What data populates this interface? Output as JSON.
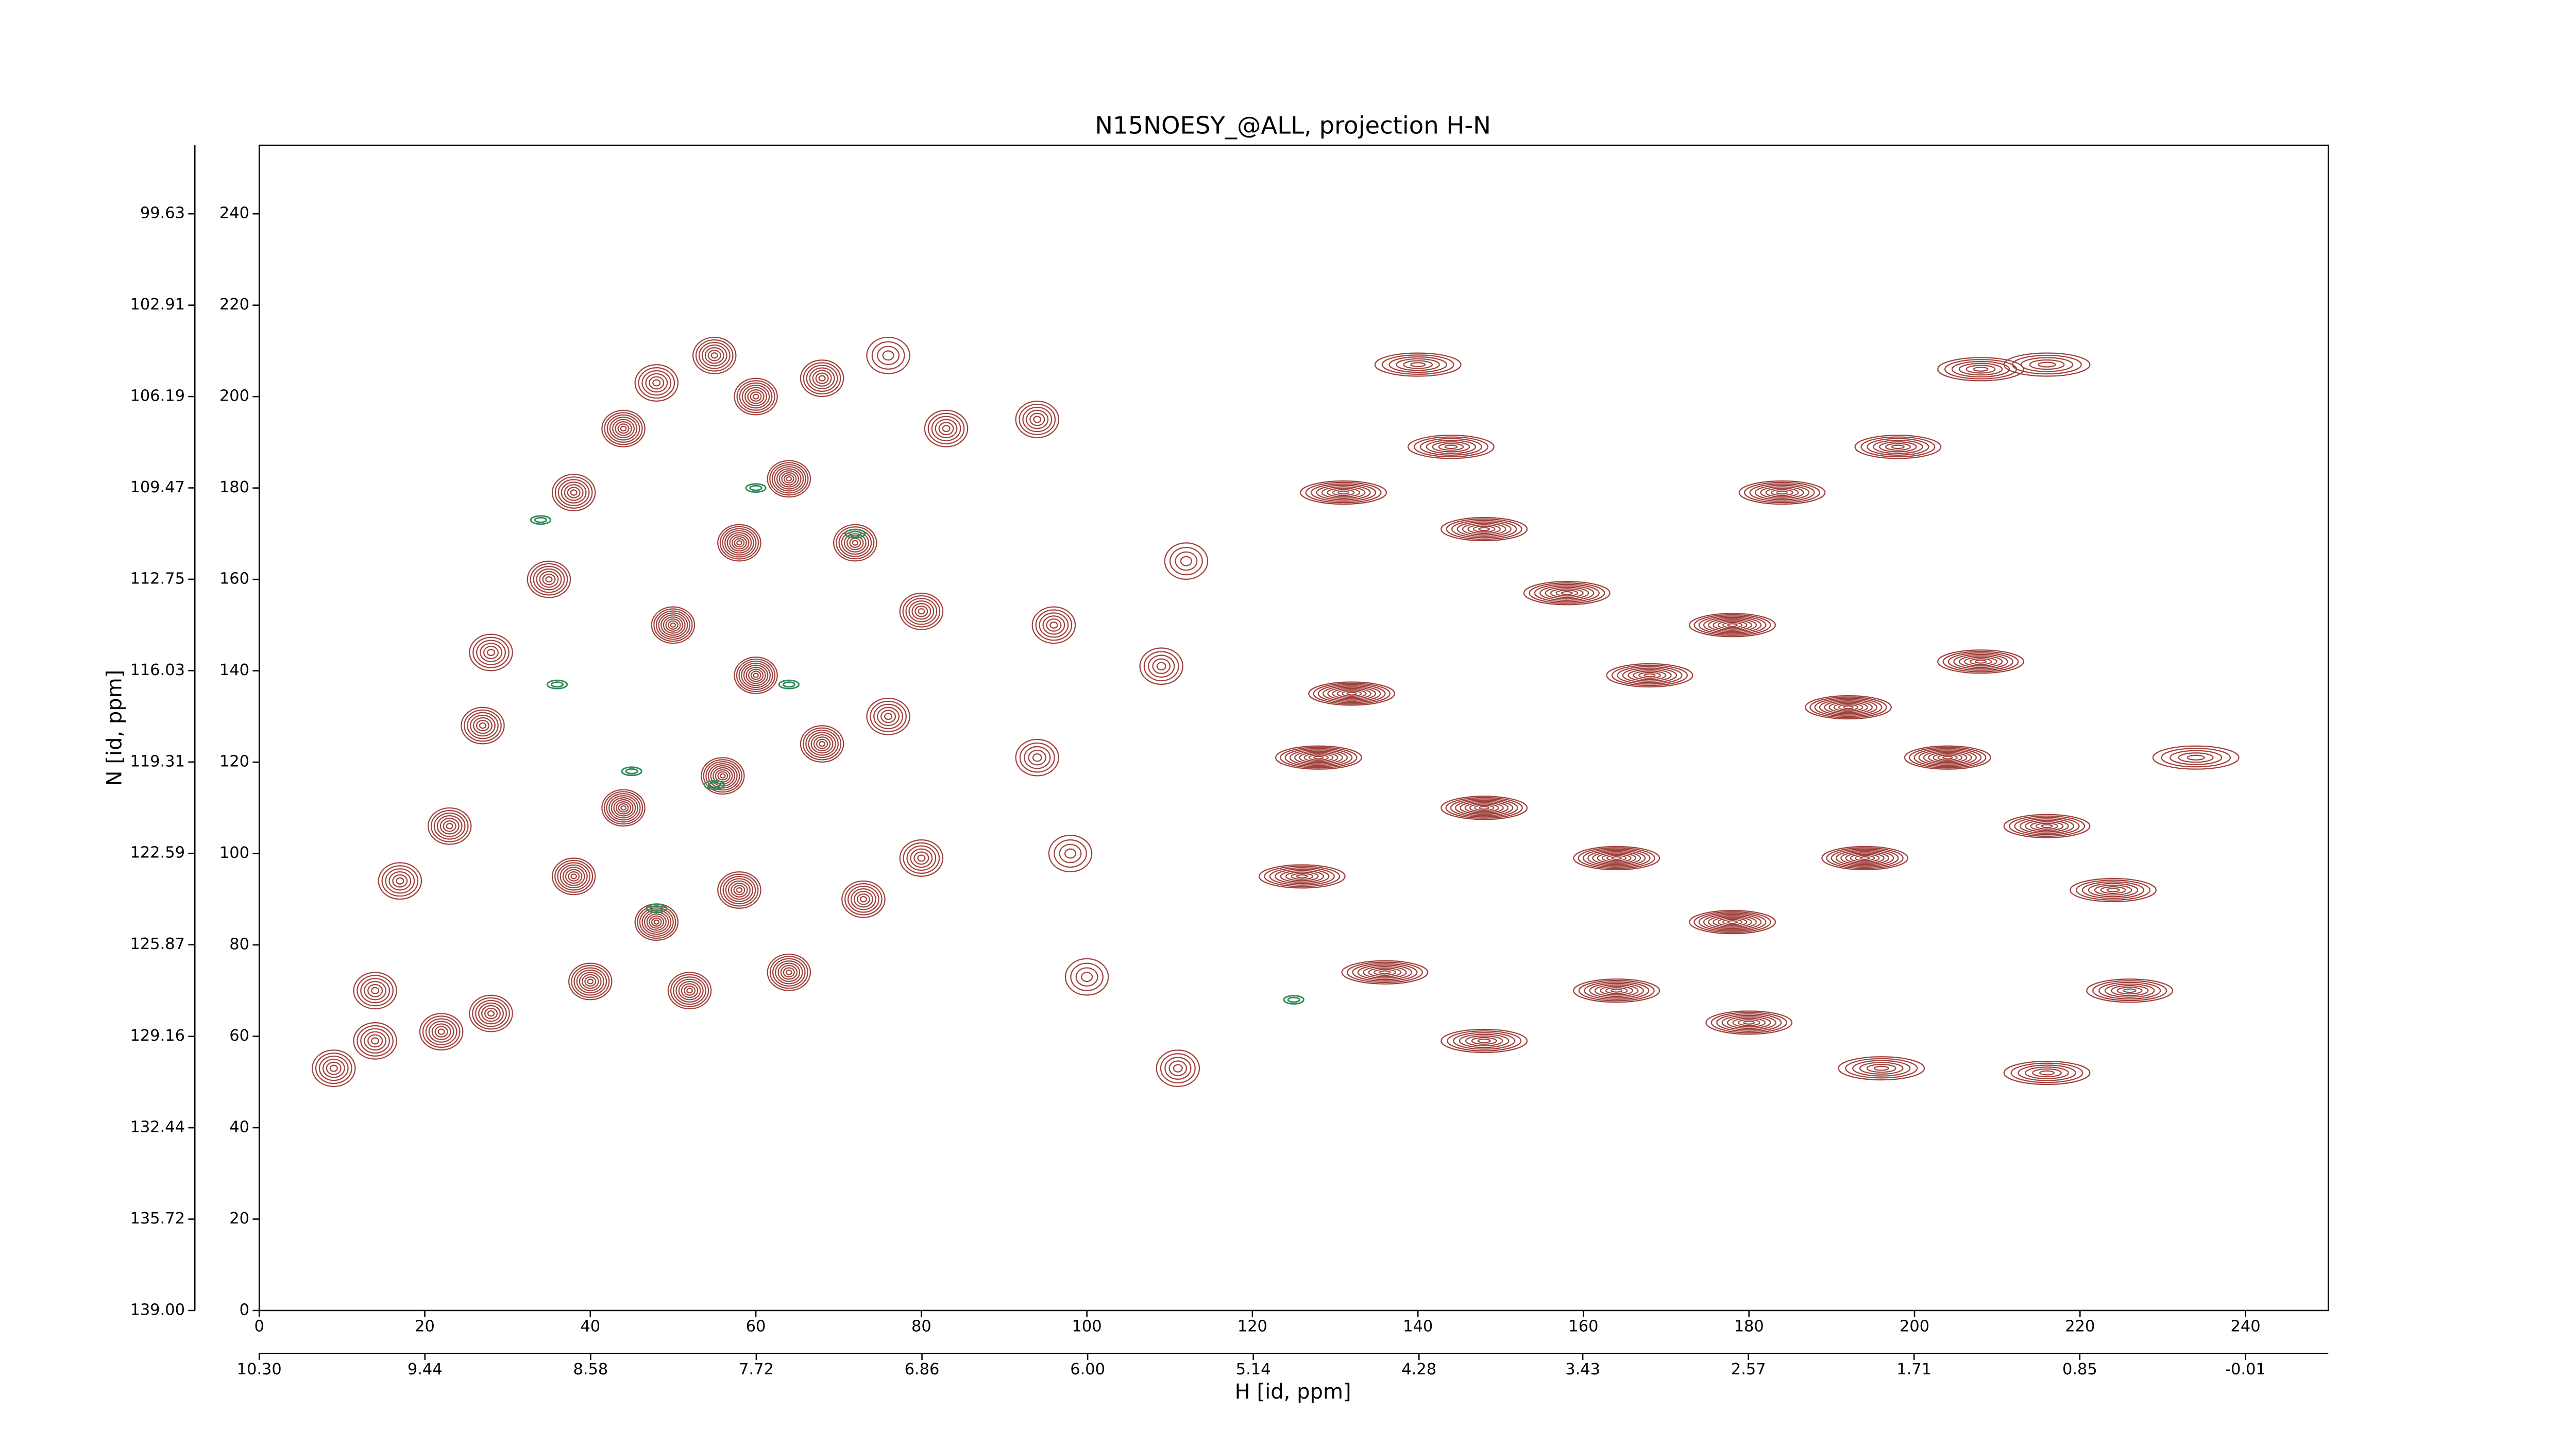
{
  "chart_data": {
    "type": "contour",
    "title": "N15NOESY_@ALL, projection H-N",
    "x_label": "H [id, ppm]",
    "y_label": "N [id, ppm]",
    "xlim": [
      0,
      250
    ],
    "ylim": [
      0,
      255
    ],
    "xticks": [
      0,
      20,
      40,
      60,
      80,
      100,
      120,
      140,
      160,
      180,
      200,
      220,
      240
    ],
    "yticks": [
      0,
      20,
      40,
      60,
      80,
      100,
      120,
      140,
      160,
      180,
      200,
      220,
      240
    ],
    "x2lim": [
      10.3,
      -0.44
    ],
    "x2ticks": [
      {
        "value": 10.3,
        "label": "10.30"
      },
      {
        "value": 9.44,
        "label": "9.44"
      },
      {
        "value": 8.58,
        "label": "8.58"
      },
      {
        "value": 7.72,
        "label": "7.72"
      },
      {
        "value": 6.86,
        "label": "6.86"
      },
      {
        "value": 6.0,
        "label": "6.00"
      },
      {
        "value": 5.14,
        "label": "5.14"
      },
      {
        "value": 4.28,
        "label": "4.28"
      },
      {
        "value": 3.43,
        "label": "3.43"
      },
      {
        "value": 2.57,
        "label": "2.57"
      },
      {
        "value": 1.71,
        "label": "1.71"
      },
      {
        "value": 0.85,
        "label": "0.85"
      },
      {
        "value": -0.01,
        "label": "-0.01"
      }
    ],
    "y2lim": [
      139.0,
      97.17
    ],
    "y2ticks": [
      {
        "value": 139.0,
        "label": "139.00"
      },
      {
        "value": 135.72,
        "label": "135.72"
      },
      {
        "value": 132.44,
        "label": "132.44"
      },
      {
        "value": 129.16,
        "label": "129.16"
      },
      {
        "value": 125.87,
        "label": "125.87"
      },
      {
        "value": 122.59,
        "label": "122.59"
      },
      {
        "value": 119.31,
        "label": "119.31"
      },
      {
        "value": 116.03,
        "label": "116.03"
      },
      {
        "value": 112.75,
        "label": "112.75"
      },
      {
        "value": 109.47,
        "label": "109.47"
      },
      {
        "value": 106.19,
        "label": "106.19"
      },
      {
        "value": 102.91,
        "label": "102.91"
      },
      {
        "value": 99.63,
        "label": "99.63"
      }
    ],
    "color": "#a0413c",
    "negative_color": "#2e8b57",
    "peaks": [
      {
        "x": 94,
        "y": 195,
        "levels": 6
      },
      {
        "x": 83,
        "y": 193,
        "levels": 6
      },
      {
        "x": 96,
        "y": 150,
        "levels": 6
      },
      {
        "x": 94,
        "y": 121,
        "levels": 5
      },
      {
        "x": 98,
        "y": 100,
        "levels": 4
      },
      {
        "x": 100,
        "y": 73,
        "levels": 4
      },
      {
        "x": 111,
        "y": 53,
        "levels": 5
      },
      {
        "x": 109,
        "y": 141,
        "levels": 5
      },
      {
        "x": 112,
        "y": 164,
        "levels": 4
      },
      {
        "x": 76,
        "y": 209,
        "levels": 4
      },
      {
        "x": 9,
        "y": 53,
        "levels": 6
      },
      {
        "x": 14,
        "y": 70,
        "levels": 6
      },
      {
        "x": 17,
        "y": 94,
        "levels": 6
      },
      {
        "x": 23,
        "y": 106,
        "levels": 7
      },
      {
        "x": 27,
        "y": 128,
        "levels": 7
      },
      {
        "x": 28,
        "y": 144,
        "levels": 6
      },
      {
        "x": 35,
        "y": 160,
        "levels": 7
      },
      {
        "x": 38,
        "y": 179,
        "levels": 7
      },
      {
        "x": 44,
        "y": 193,
        "levels": 8
      },
      {
        "x": 48,
        "y": 203,
        "levels": 6
      },
      {
        "x": 55,
        "y": 209,
        "levels": 7
      },
      {
        "x": 60,
        "y": 200,
        "levels": 8
      },
      {
        "x": 68,
        "y": 204,
        "levels": 7
      },
      {
        "x": 64,
        "y": 182,
        "levels": 9
      },
      {
        "x": 72,
        "y": 168,
        "levels": 8
      },
      {
        "x": 58,
        "y": 168,
        "levels": 9
      },
      {
        "x": 50,
        "y": 150,
        "levels": 9
      },
      {
        "x": 60,
        "y": 139,
        "levels": 9
      },
      {
        "x": 68,
        "y": 124,
        "levels": 8
      },
      {
        "x": 56,
        "y": 117,
        "levels": 9
      },
      {
        "x": 44,
        "y": 110,
        "levels": 9
      },
      {
        "x": 38,
        "y": 95,
        "levels": 8
      },
      {
        "x": 48,
        "y": 85,
        "levels": 9
      },
      {
        "x": 58,
        "y": 92,
        "levels": 8
      },
      {
        "x": 73,
        "y": 90,
        "levels": 7
      },
      {
        "x": 64,
        "y": 74,
        "levels": 8
      },
      {
        "x": 52,
        "y": 70,
        "levels": 8
      },
      {
        "x": 40,
        "y": 72,
        "levels": 8
      },
      {
        "x": 28,
        "y": 65,
        "levels": 7
      },
      {
        "x": 22,
        "y": 61,
        "levels": 7
      },
      {
        "x": 14,
        "y": 59,
        "levels": 6
      },
      {
        "x": 80,
        "y": 99,
        "levels": 6
      },
      {
        "x": 76,
        "y": 130,
        "levels": 6
      },
      {
        "x": 80,
        "y": 153,
        "levels": 7
      },
      {
        "x": 140,
        "y": 207,
        "levels": 6
      },
      {
        "x": 144,
        "y": 189,
        "levels": 7
      },
      {
        "x": 131,
        "y": 179,
        "levels": 8
      },
      {
        "x": 148,
        "y": 171,
        "levels": 8
      },
      {
        "x": 158,
        "y": 157,
        "levels": 8
      },
      {
        "x": 168,
        "y": 139,
        "levels": 8
      },
      {
        "x": 184,
        "y": 179,
        "levels": 8
      },
      {
        "x": 198,
        "y": 189,
        "levels": 7
      },
      {
        "x": 208,
        "y": 206,
        "levels": 6
      },
      {
        "x": 216,
        "y": 207,
        "levels": 5
      },
      {
        "x": 178,
        "y": 150,
        "levels": 9
      },
      {
        "x": 192,
        "y": 132,
        "levels": 9
      },
      {
        "x": 204,
        "y": 121,
        "levels": 9
      },
      {
        "x": 216,
        "y": 106,
        "levels": 8
      },
      {
        "x": 224,
        "y": 92,
        "levels": 7
      },
      {
        "x": 226,
        "y": 70,
        "levels": 7
      },
      {
        "x": 216,
        "y": 52,
        "levels": 6
      },
      {
        "x": 196,
        "y": 53,
        "levels": 6
      },
      {
        "x": 180,
        "y": 63,
        "levels": 8
      },
      {
        "x": 164,
        "y": 70,
        "levels": 8
      },
      {
        "x": 148,
        "y": 59,
        "levels": 7
      },
      {
        "x": 136,
        "y": 74,
        "levels": 8
      },
      {
        "x": 126,
        "y": 95,
        "levels": 8
      },
      {
        "x": 128,
        "y": 121,
        "levels": 9
      },
      {
        "x": 132,
        "y": 135,
        "levels": 9
      },
      {
        "x": 148,
        "y": 110,
        "levels": 9
      },
      {
        "x": 164,
        "y": 99,
        "levels": 9
      },
      {
        "x": 178,
        "y": 85,
        "levels": 9
      },
      {
        "x": 194,
        "y": 99,
        "levels": 9
      },
      {
        "x": 208,
        "y": 142,
        "levels": 8
      },
      {
        "x": 234,
        "y": 121,
        "levels": 5
      }
    ],
    "negative_peaks": [
      {
        "x": 36,
        "y": 137
      },
      {
        "x": 64,
        "y": 137
      },
      {
        "x": 48,
        "y": 88
      },
      {
        "x": 125,
        "y": 68
      },
      {
        "x": 34,
        "y": 173
      },
      {
        "x": 45,
        "y": 118
      },
      {
        "x": 55,
        "y": 115
      },
      {
        "x": 72,
        "y": 170
      },
      {
        "x": 60,
        "y": 180
      }
    ]
  }
}
